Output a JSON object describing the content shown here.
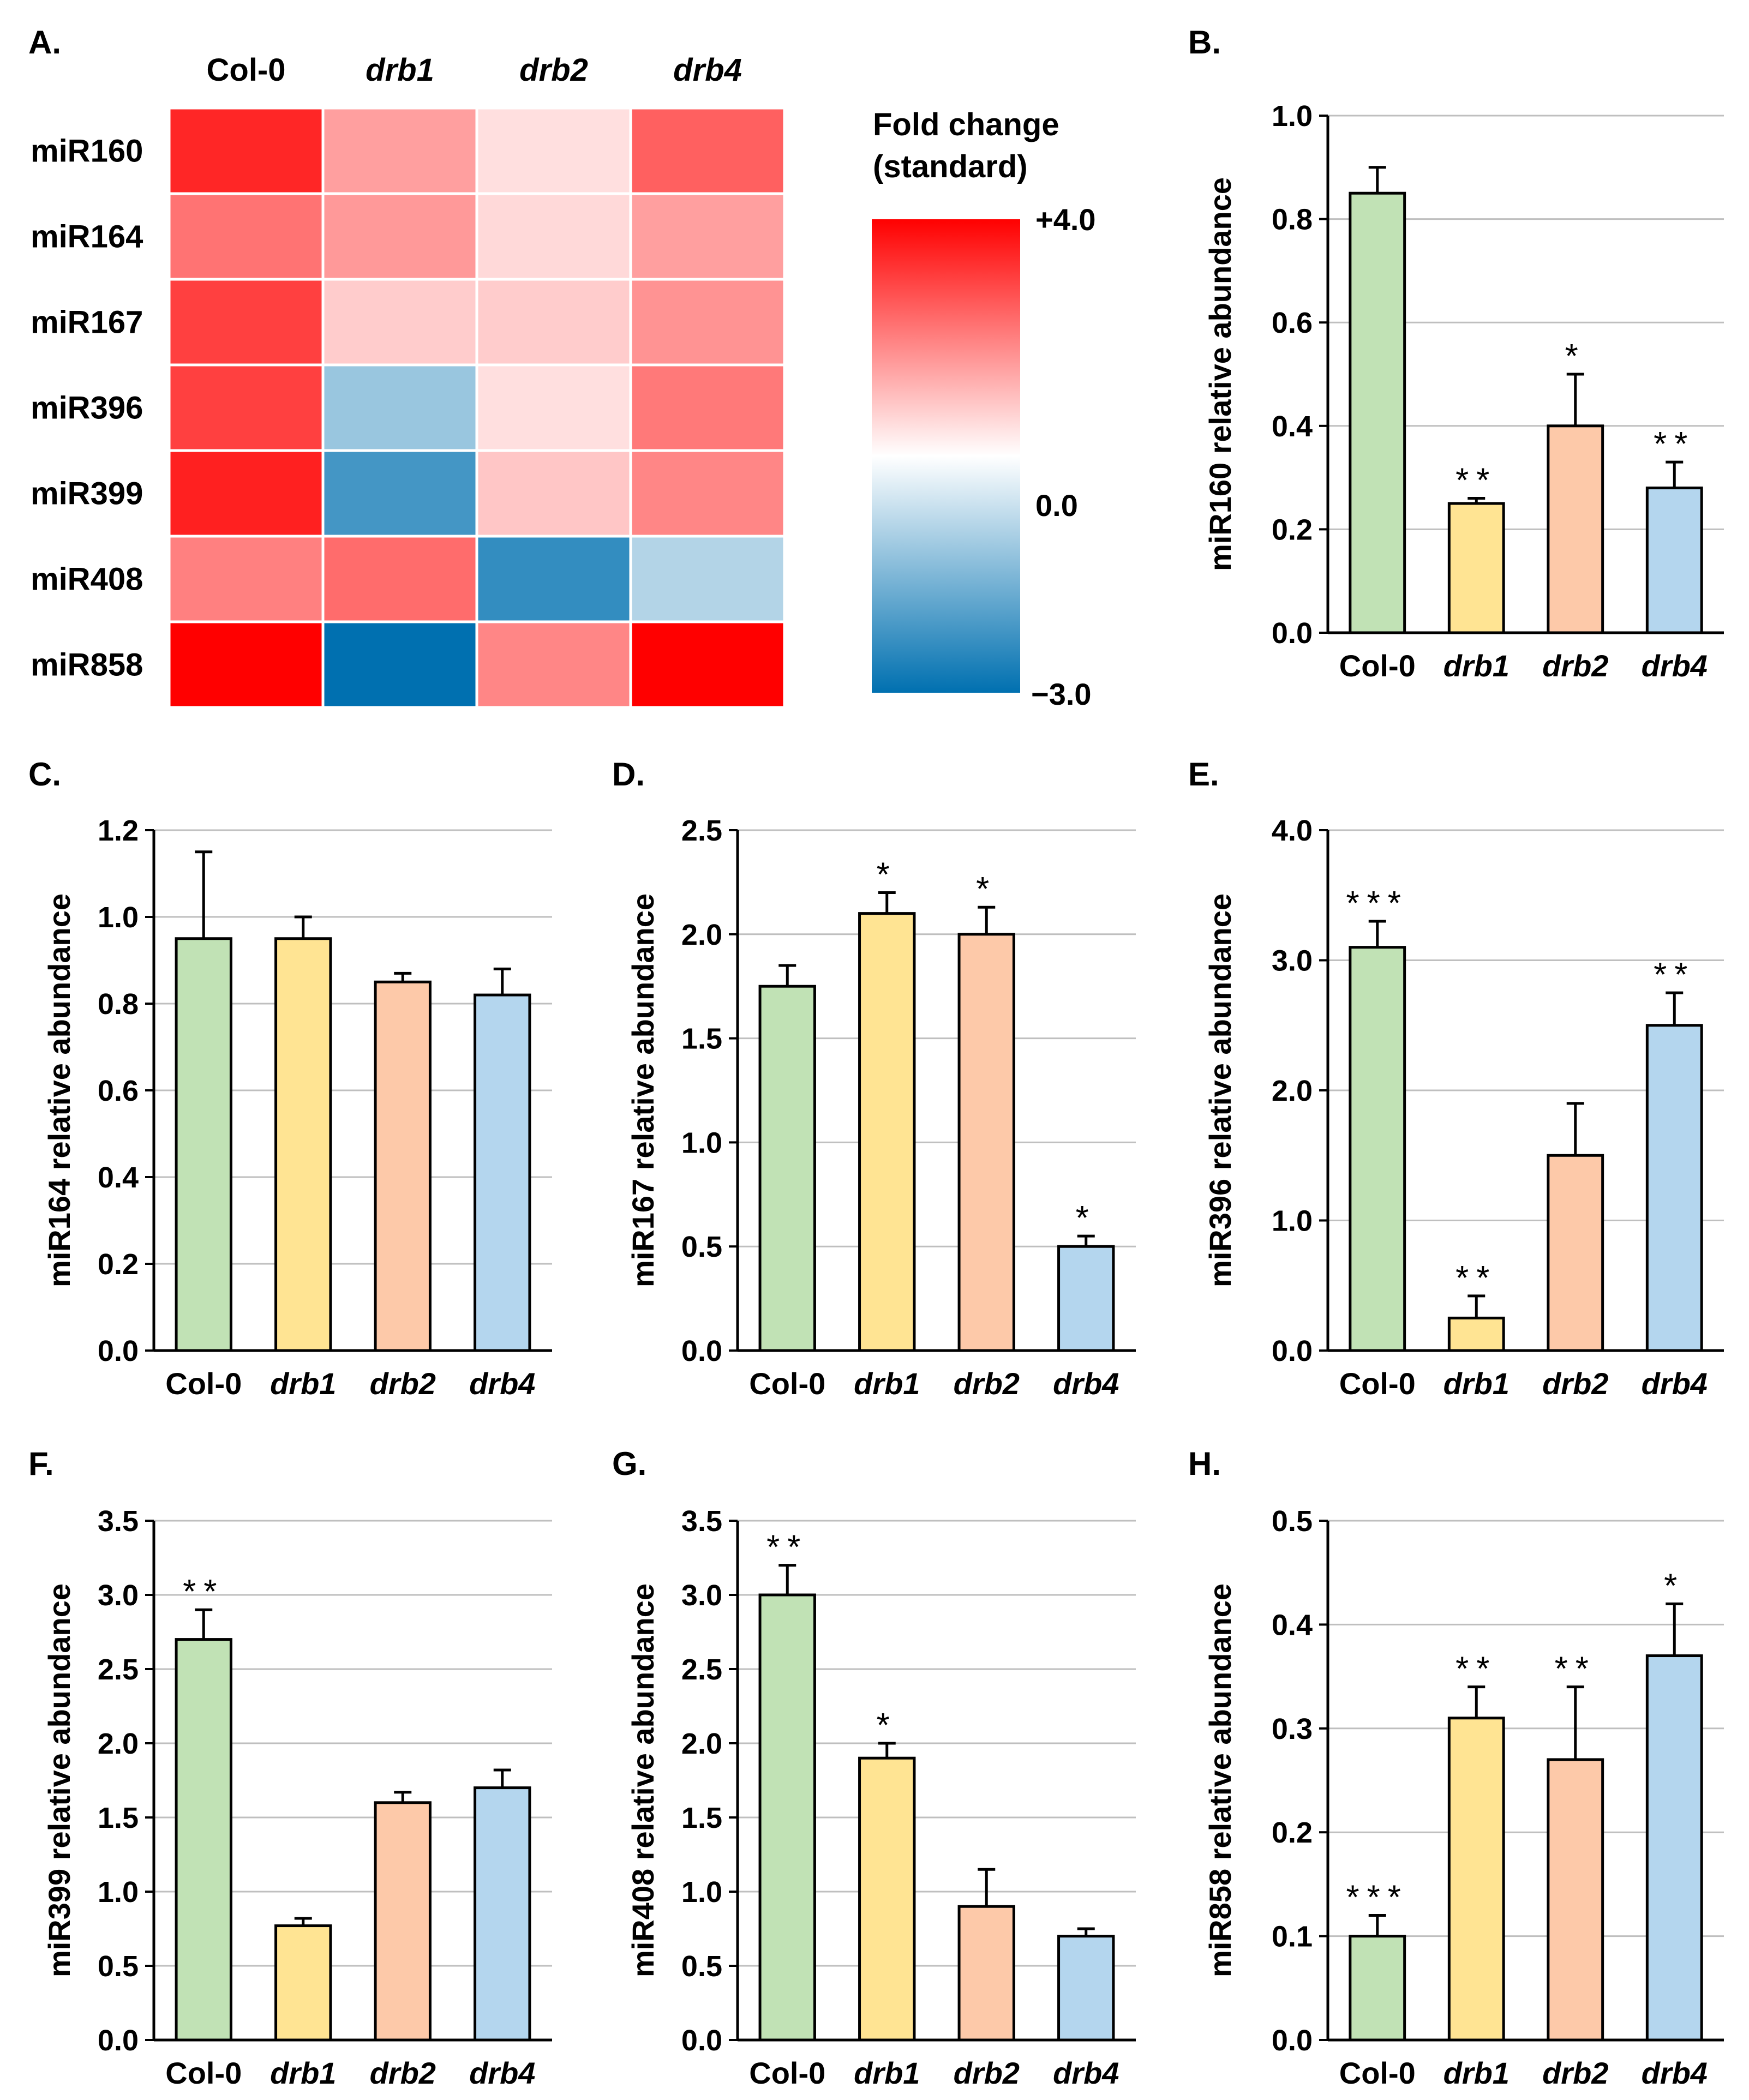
{
  "heatmap": {
    "panel_label": "A.",
    "columns": [
      "Col-0",
      "drb1",
      "drb2",
      "drb4"
    ],
    "italic_columns": [
      false,
      true,
      true,
      true
    ],
    "rows": [
      "miR160",
      "miR164",
      "miR167",
      "miR396",
      "miR399",
      "miR408",
      "miR858"
    ],
    "values": [
      [
        3.4,
        1.5,
        0.5,
        2.5
      ],
      [
        2.2,
        1.6,
        0.6,
        1.5
      ],
      [
        3.0,
        0.8,
        0.8,
        1.7
      ],
      [
        3.0,
        -1.2,
        0.5,
        2.1
      ],
      [
        3.5,
        -2.2,
        0.9,
        1.9
      ],
      [
        2.0,
        2.3,
        -2.4,
        -0.9
      ],
      [
        4.0,
        -3.0,
        1.9,
        4.0
      ]
    ],
    "legend_title_line1": "Fold change",
    "legend_title_line2": "(standard)",
    "legend_max_label": "+4.0",
    "legend_mid_label": "0.0",
    "legend_min_label": "−3.0",
    "scale_max": 4.0,
    "scale_min": -3.0,
    "color_high": "#ff0000",
    "color_mid": "#ffffff",
    "color_low": "#0070b0"
  },
  "bar_colors": [
    "#c1e2b5",
    "#ffe493",
    "#fdc9a9",
    "#b4d6ee"
  ],
  "chart_data": [
    {
      "id": "B",
      "panel_label": "B.",
      "type": "bar",
      "categories": [
        "Col-0",
        "drb1",
        "drb2",
        "drb4"
      ],
      "values": [
        0.85,
        0.25,
        0.4,
        0.28
      ],
      "errors": [
        0.05,
        0.01,
        0.1,
        0.05
      ],
      "significance": [
        "",
        "**",
        "*",
        "**"
      ],
      "ylabel": "miR160 relative abundance",
      "ylim": [
        0,
        1.0
      ],
      "yticks": [
        0,
        0.2,
        0.4,
        0.6,
        0.8,
        1.0
      ],
      "ytick_labels": [
        "0.0",
        "0.2",
        "0.4",
        "0.6",
        "0.8",
        "1.0"
      ]
    },
    {
      "id": "C",
      "panel_label": "C.",
      "type": "bar",
      "categories": [
        "Col-0",
        "drb1",
        "drb2",
        "drb4"
      ],
      "values": [
        0.95,
        0.95,
        0.85,
        0.82
      ],
      "errors": [
        0.2,
        0.05,
        0.02,
        0.06
      ],
      "significance": [
        "",
        "",
        "",
        ""
      ],
      "ylabel": "miR164 relative abundance",
      "ylim": [
        0,
        1.2
      ],
      "yticks": [
        0,
        0.2,
        0.4,
        0.6,
        0.8,
        1.0,
        1.2
      ],
      "ytick_labels": [
        "0.0",
        "0.2",
        "0.4",
        "0.6",
        "0.8",
        "1.0",
        "1.2"
      ]
    },
    {
      "id": "D",
      "panel_label": "D.",
      "type": "bar",
      "categories": [
        "Col-0",
        "drb1",
        "drb2",
        "drb4"
      ],
      "values": [
        1.75,
        2.1,
        2.0,
        0.5
      ],
      "errors": [
        0.1,
        0.1,
        0.13,
        0.05
      ],
      "significance": [
        "",
        "*",
        "*",
        "*"
      ],
      "ylabel": "miR167 relative abundance",
      "ylim": [
        0,
        2.5
      ],
      "yticks": [
        0,
        0.5,
        1.0,
        1.5,
        2.0,
        2.5
      ],
      "ytick_labels": [
        "0.0",
        "0.5",
        "1.0",
        "1.5",
        "2.0",
        "2.5"
      ]
    },
    {
      "id": "E",
      "panel_label": "E.",
      "type": "bar",
      "categories": [
        "Col-0",
        "drb1",
        "drb2",
        "drb4"
      ],
      "values": [
        3.1,
        0.25,
        1.5,
        2.5
      ],
      "errors": [
        0.2,
        0.17,
        0.4,
        0.25
      ],
      "significance": [
        "***",
        "**",
        "",
        "**"
      ],
      "ylabel": "miR396 relative abundance",
      "ylim": [
        0,
        4.0
      ],
      "yticks": [
        0,
        1.0,
        2.0,
        3.0,
        4.0
      ],
      "ytick_labels": [
        "0.0",
        "1.0",
        "2.0",
        "3.0",
        "4.0"
      ]
    },
    {
      "id": "F",
      "panel_label": "F.",
      "type": "bar",
      "categories": [
        "Col-0",
        "drb1",
        "drb2",
        "drb4"
      ],
      "values": [
        2.7,
        0.77,
        1.6,
        1.7
      ],
      "errors": [
        0.2,
        0.05,
        0.07,
        0.12
      ],
      "significance": [
        "**",
        "",
        "",
        ""
      ],
      "ylabel": "miR399 relative abundance",
      "ylim": [
        0,
        3.5
      ],
      "yticks": [
        0,
        0.5,
        1.0,
        1.5,
        2.0,
        2.5,
        3.0,
        3.5
      ],
      "ytick_labels": [
        "0.0",
        "0.5",
        "1.0",
        "1.5",
        "2.0",
        "2.5",
        "3.0",
        "3.5"
      ]
    },
    {
      "id": "G",
      "panel_label": "G.",
      "type": "bar",
      "categories": [
        "Col-0",
        "drb1",
        "drb2",
        "drb4"
      ],
      "values": [
        3.0,
        1.9,
        0.9,
        0.7
      ],
      "errors": [
        0.2,
        0.1,
        0.25,
        0.05
      ],
      "significance": [
        "**",
        "*",
        "",
        ""
      ],
      "ylabel": "miR408 relative abundance",
      "ylim": [
        0,
        3.5
      ],
      "yticks": [
        0,
        0.5,
        1.0,
        1.5,
        2.0,
        2.5,
        3.0,
        3.5
      ],
      "ytick_labels": [
        "0.0",
        "0.5",
        "1.0",
        "1.5",
        "2.0",
        "2.5",
        "3.0",
        "3.5"
      ]
    },
    {
      "id": "H",
      "panel_label": "H.",
      "type": "bar",
      "categories": [
        "Col-0",
        "drb1",
        "drb2",
        "drb4"
      ],
      "values": [
        0.1,
        0.31,
        0.27,
        0.37
      ],
      "errors": [
        0.02,
        0.03,
        0.07,
        0.05
      ],
      "significance": [
        "***",
        "**",
        "**",
        "*"
      ],
      "ylabel": "miR858 relative abundance",
      "ylim": [
        0,
        0.5
      ],
      "yticks": [
        0,
        0.1,
        0.2,
        0.3,
        0.4,
        0.5
      ],
      "ytick_labels": [
        "0.0",
        "0.1",
        "0.2",
        "0.3",
        "0.4",
        "0.5"
      ]
    }
  ]
}
